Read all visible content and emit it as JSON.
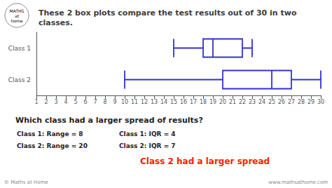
{
  "chart_data": {
    "type": "boxplot",
    "title": "These 2 box plots compare the test results out of 30 in two\nclasses.",
    "categories": [
      "Class 1",
      "Class 2"
    ],
    "values": [
      [
        15,
        18,
        19,
        22,
        23
      ],
      [
        10,
        20,
        25,
        27,
        30
      ]
    ],
    "color": "#3333cc",
    "orientation": "horizontal",
    "xlim": [
      1,
      30
    ],
    "xticks": [
      1,
      2,
      3,
      4,
      5,
      6,
      7,
      8,
      9,
      10,
      11,
      12,
      13,
      14,
      15,
      16,
      17,
      18,
      19,
      20,
      21,
      22,
      23,
      24,
      25,
      26,
      27,
      28,
      29,
      30
    ],
    "grid": false,
    "annotations": [
      {
        "text": "Which class had a larger spread of results?"
      },
      {
        "text": "Class 1: Range = 8"
      },
      {
        "text": "Class 2: Range = 20"
      },
      {
        "text": "Class 1: IQR = 4"
      },
      {
        "text": "Class 2: IQR = 7"
      },
      {
        "text": "Class 2 had a larger spread",
        "color": "#ff2200"
      },
      {
        "text": "© Maths at Home"
      },
      {
        "text": "www.mathsathome.com"
      },
      {
        "text": "MATHS\nat\nhome"
      }
    ]
  }
}
